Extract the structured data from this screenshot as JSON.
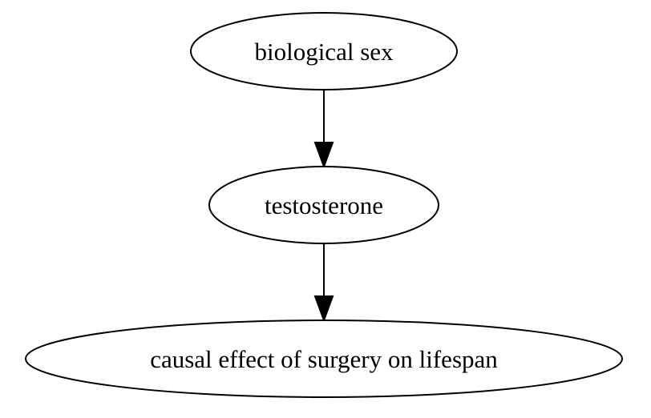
{
  "diagram": {
    "nodes": [
      {
        "id": "biological-sex",
        "label": "biological sex"
      },
      {
        "id": "testosterone",
        "label": "testosterone"
      },
      {
        "id": "causal-effect",
        "label": "causal effect of surgery on lifespan"
      }
    ],
    "edges": [
      {
        "from": "biological-sex",
        "to": "testosterone"
      },
      {
        "from": "testosterone",
        "to": "causal-effect"
      }
    ]
  }
}
